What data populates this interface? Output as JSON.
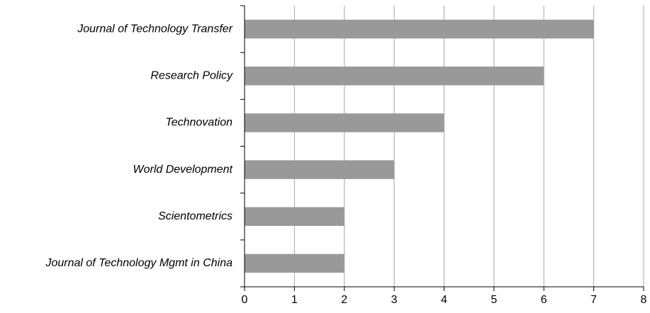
{
  "chart_data": {
    "type": "bar",
    "orientation": "horizontal",
    "categories": [
      "Journal of Technology Transfer",
      "Research Policy",
      "Technovation",
      "World Development",
      "Scientometrics",
      "Journal of Technology Mgmt in China"
    ],
    "values": [
      7,
      6,
      4,
      3,
      2,
      2
    ],
    "color": "#999999",
    "xlim": [
      0,
      8
    ],
    "xticks": [
      0,
      1,
      2,
      3,
      4,
      5,
      6,
      7,
      8
    ],
    "grid": true
  }
}
